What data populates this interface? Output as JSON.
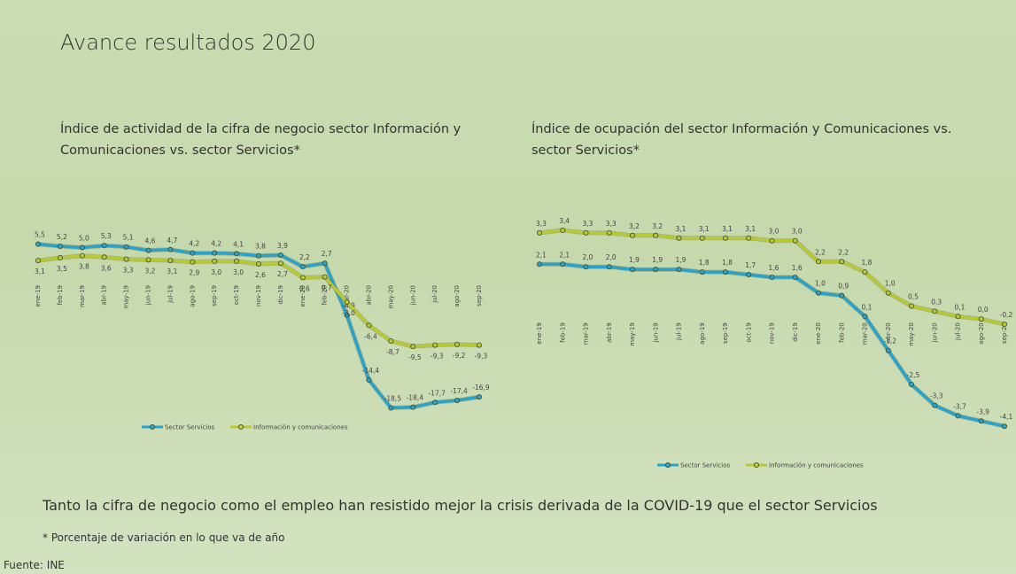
{
  "title": "Avance resultados 2020",
  "conclusion": "Tanto la cifra de negocio como el empleo han resistido mejor la crisis derivada de la COVID-19 que el sector Servicios",
  "note": "* Porcentaje de variación en lo que va de año",
  "source": "Fuente: INE",
  "chart_data": [
    {
      "type": "line",
      "title": "Índice de actividad de la cifra de negocio sector Información y Comunicaciones vs. sector Servicios*",
      "categories": [
        "ene-19",
        "feb-19",
        "mar-19",
        "abr-19",
        "may-19",
        "jun-19",
        "jul-19",
        "ago-19",
        "sep-19",
        "oct-19",
        "nov-19",
        "dic-19",
        "ene-20",
        "feb-20",
        "mar-20",
        "abr-20",
        "may-20",
        "jun-20",
        "jul-20",
        "ago-20",
        "sep-20"
      ],
      "ylim": [
        -20,
        6
      ],
      "series": [
        {
          "name": "Sector Servicios",
          "color": "#2aa3cc",
          "values": [
            5.5,
            5.2,
            5.0,
            5.3,
            5.1,
            4.6,
            4.7,
            4.2,
            4.2,
            4.1,
            3.8,
            3.9,
            2.2,
            2.7,
            -4.9,
            -14.4,
            -18.5,
            -18.4,
            -17.7,
            -17.4,
            -16.9
          ],
          "value_labels": [
            "5,5",
            "5,2",
            "5,0",
            "5,3",
            "5,1",
            "4,6",
            "4,7",
            "4,2",
            "4,2",
            "4,1",
            "3,8",
            "3,9",
            "2,2",
            "2,7",
            "-4,9",
            "-14,4",
            "-18,5",
            "-18,4",
            "-17,7",
            "-17,4",
            "-16,9"
          ]
        },
        {
          "name": "Información y comunicaciones",
          "color": "#b9c934",
          "values": [
            3.1,
            3.5,
            3.8,
            3.6,
            3.3,
            3.2,
            3.1,
            2.9,
            3.0,
            3.0,
            2.6,
            2.7,
            0.6,
            0.7,
            -3.0,
            -6.4,
            -8.7,
            -9.5,
            -9.3,
            -9.2,
            -9.3
          ],
          "value_labels": [
            "3,1",
            "3,5",
            "3,8",
            "3,6",
            "3,3",
            "3,2",
            "3,1",
            "2,9",
            "3,0",
            "3,0",
            "2,6",
            "2,7",
            "0,6",
            "0,7",
            "-3,0",
            "-6,4",
            "-8,7",
            "-9,5",
            "-9,3",
            "-9,2",
            "-9,3"
          ]
        }
      ]
    },
    {
      "type": "line",
      "title": "Índice de ocupación del sector Información y Comunicaciones vs. sector Servicios*",
      "categories": [
        "ene-19",
        "feb-19",
        "mar-19",
        "abr-19",
        "may-19",
        "jun-19",
        "jul-19",
        "ago-19",
        "sep-19",
        "oct-19",
        "nov-19",
        "dic-19",
        "ene-20",
        "feb-20",
        "mar-20",
        "abr-20",
        "may-20",
        "jun-20",
        "jul-20",
        "ago-20",
        "sep-20"
      ],
      "ylim": [
        -4.5,
        3.6
      ],
      "series": [
        {
          "name": "Sector Servicios",
          "color": "#2aa3cc",
          "values": [
            2.1,
            2.1,
            2.0,
            2.0,
            1.9,
            1.9,
            1.9,
            1.8,
            1.8,
            1.7,
            1.6,
            1.6,
            1.0,
            0.9,
            0.1,
            -1.2,
            -2.5,
            -3.3,
            -3.7,
            -3.9,
            -4.1
          ],
          "value_labels": [
            "2,1",
            "2,1",
            "2,0",
            "2,0",
            "1,9",
            "1,9",
            "1,9",
            "1,8",
            "1,8",
            "1,7",
            "1,6",
            "1,6",
            "1,0",
            "0,9",
            "0,1",
            "-1,2",
            "-2,5",
            "-3,3",
            "-3,7",
            "-3,9",
            "-4,1"
          ]
        },
        {
          "name": "Información y comunicaciones",
          "color": "#b9c934",
          "values": [
            3.3,
            3.4,
            3.3,
            3.3,
            3.2,
            3.2,
            3.1,
            3.1,
            3.1,
            3.1,
            3.0,
            3.0,
            2.2,
            2.2,
            1.8,
            1.0,
            0.5,
            0.3,
            0.1,
            0.0,
            -0.2
          ],
          "value_labels": [
            "3,3",
            "3,4",
            "3,3",
            "3,3",
            "3,2",
            "3,2",
            "3,1",
            "3,1",
            "3,1",
            "3,1",
            "3,0",
            "3,0",
            "2,2",
            "2,2",
            "1,8",
            "1,0",
            "0,5",
            "0,3",
            "0,1",
            "0,0",
            "-0,2"
          ]
        }
      ]
    }
  ]
}
